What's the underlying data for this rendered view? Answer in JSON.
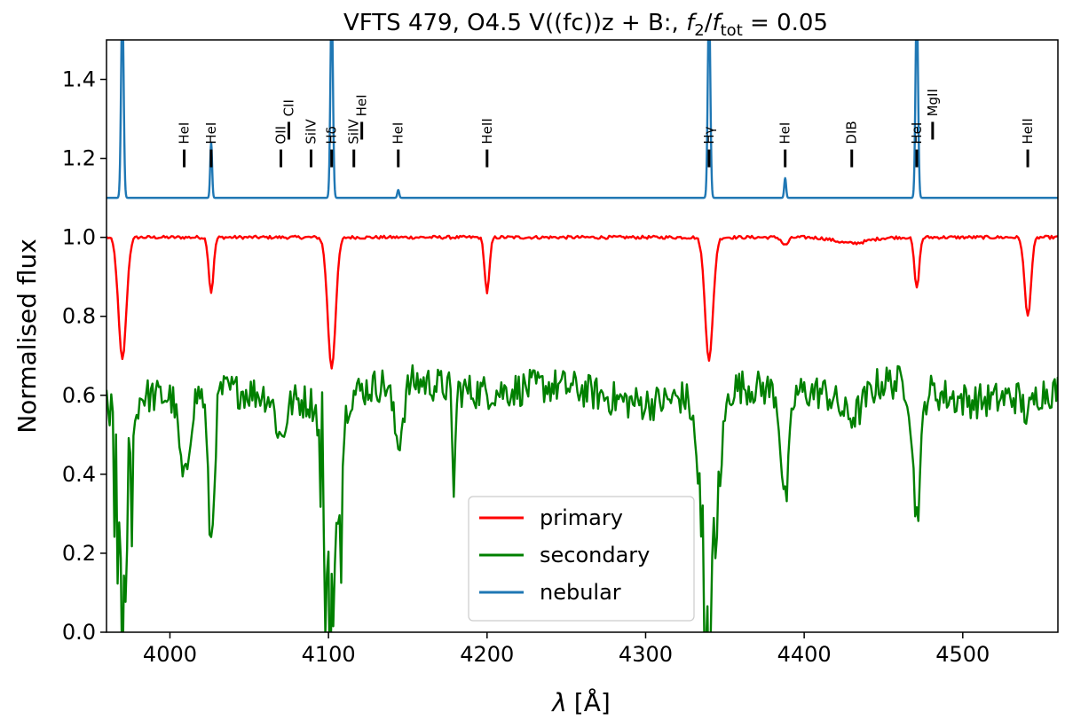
{
  "chart_data": {
    "type": "line",
    "title_prefix": "VFTS 479, O4.5 V((fc))z + B:, ",
    "title_f2": "f",
    "title_f2_sub": "2",
    "title_slash": "/",
    "title_ftot": "f",
    "title_ftot_sub": "tot",
    "title_suffix": " = 0.05",
    "xlabel_lambda": "λ",
    "xlabel_unit": "[Å]",
    "ylabel": "Normalised flux",
    "xlim": [
      3960,
      4560
    ],
    "ylim": [
      0.0,
      1.5
    ],
    "xticks": [
      4000,
      4100,
      4200,
      4300,
      4400,
      4500
    ],
    "yticks": [
      0.0,
      0.2,
      0.4,
      0.6,
      0.8,
      1.0,
      1.2,
      1.4
    ],
    "nebular_baseline": 1.1,
    "legend_position": "lower-center",
    "series": [
      {
        "name": "primary",
        "color": "#ff0000",
        "baseline": 1.0,
        "lines": [
          {
            "center": 3970,
            "depth": 0.31,
            "width": 2.5
          },
          {
            "center": 4026,
            "depth": 0.14,
            "width": 1.5
          },
          {
            "center": 4102,
            "depth": 0.33,
            "width": 2.5
          },
          {
            "center": 4200,
            "depth": 0.14,
            "width": 1.5
          },
          {
            "center": 4340,
            "depth": 0.31,
            "width": 2.5
          },
          {
            "center": 4388,
            "depth": 0.02,
            "width": 2.0
          },
          {
            "center": 4430,
            "depth": 0.015,
            "width": 10.0
          },
          {
            "center": 4471,
            "depth": 0.13,
            "width": 1.5
          },
          {
            "center": 4541,
            "depth": 0.2,
            "width": 2.0
          }
        ]
      },
      {
        "name": "secondary",
        "color": "#008000",
        "baseline": 0.61,
        "lines": [
          {
            "center": 3970,
            "depth": 0.6,
            "width": 4.0
          },
          {
            "center": 4009,
            "depth": 0.22,
            "width": 3.0
          },
          {
            "center": 4026,
            "depth": 0.38,
            "width": 2.0
          },
          {
            "center": 4070,
            "depth": 0.1,
            "width": 3.0
          },
          {
            "center": 4102,
            "depth": 0.6,
            "width": 4.0
          },
          {
            "center": 4144,
            "depth": 0.15,
            "width": 3.0
          },
          {
            "center": 4179,
            "depth": 0.25,
            "width": 1.0
          },
          {
            "center": 4340,
            "depth": 0.6,
            "width": 5.0
          },
          {
            "center": 4388,
            "depth": 0.28,
            "width": 2.5
          },
          {
            "center": 4430,
            "depth": 0.08,
            "width": 8.0
          },
          {
            "center": 4471,
            "depth": 0.32,
            "width": 2.5
          },
          {
            "center": 4541,
            "depth": 0.05,
            "width": 3.0
          }
        ]
      },
      {
        "name": "nebular",
        "color": "#1f77b4",
        "baseline": 1.1,
        "lines": [
          {
            "center": 3970,
            "height": 0.5,
            "width": 0.8
          },
          {
            "center": 4026,
            "height": 0.14,
            "width": 0.6
          },
          {
            "center": 4102,
            "height": 0.5,
            "width": 0.8
          },
          {
            "center": 4144,
            "height": 0.02,
            "width": 0.6
          },
          {
            "center": 4340,
            "height": 0.5,
            "width": 0.8
          },
          {
            "center": 4388,
            "height": 0.05,
            "width": 0.6
          },
          {
            "center": 4471,
            "height": 0.5,
            "width": 0.8
          }
        ]
      }
    ],
    "line_ids": [
      {
        "label": "HeI",
        "x": 4009,
        "y": 1.2,
        "tier": 0
      },
      {
        "label": "HeI",
        "x": 4026,
        "y": 1.2,
        "tier": 0
      },
      {
        "label": "OII",
        "x": 4070,
        "y": 1.2,
        "tier": 0
      },
      {
        "label": "CII",
        "x": 4075,
        "y": 1.27,
        "tier": 1
      },
      {
        "label": "SiIV",
        "x": 4089,
        "y": 1.2,
        "tier": 0
      },
      {
        "label": "Hδ",
        "x": 4102,
        "y": 1.2,
        "tier": 0
      },
      {
        "label": "SiIV",
        "x": 4116,
        "y": 1.2,
        "tier": 0
      },
      {
        "label": "HeI",
        "x": 4121,
        "y": 1.27,
        "tier": 1
      },
      {
        "label": "HeI",
        "x": 4144,
        "y": 1.2,
        "tier": 0
      },
      {
        "label": "HeII",
        "x": 4200,
        "y": 1.2,
        "tier": 0
      },
      {
        "label": "Hγ",
        "x": 4340,
        "y": 1.2,
        "tier": 0
      },
      {
        "label": "HeI",
        "x": 4388,
        "y": 1.2,
        "tier": 0
      },
      {
        "label": "DIB",
        "x": 4430,
        "y": 1.2,
        "tier": 0
      },
      {
        "label": "HeI",
        "x": 4471,
        "y": 1.2,
        "tier": 0
      },
      {
        "label": "MgII",
        "x": 4481,
        "y": 1.27,
        "tier": 1
      },
      {
        "label": "HeII",
        "x": 4541,
        "y": 1.2,
        "tier": 0
      }
    ]
  }
}
